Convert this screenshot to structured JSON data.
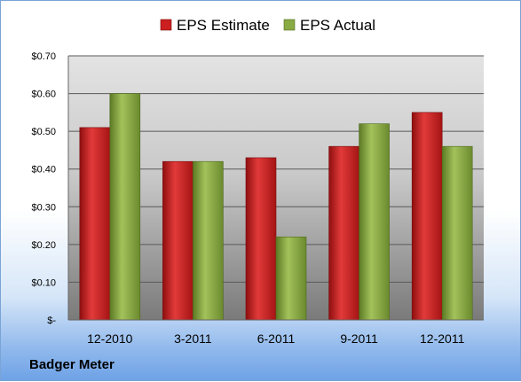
{
  "company": "Badger Meter",
  "chart_data": {
    "type": "bar",
    "categories": [
      "12-2010",
      "3-2011",
      "6-2011",
      "9-2011",
      "12-2011"
    ],
    "series": [
      {
        "name": "EPS Estimate",
        "values": [
          0.51,
          0.42,
          0.43,
          0.46,
          0.55
        ],
        "color": "#cc1f1f"
      },
      {
        "name": "EPS Actual",
        "values": [
          0.6,
          0.42,
          0.22,
          0.52,
          0.46
        ],
        "color": "#8aaa44"
      }
    ],
    "yticks": [
      {
        "value": 0,
        "label": "$-"
      },
      {
        "value": 0.1,
        "label": "$0.10"
      },
      {
        "value": 0.2,
        "label": "$0.20"
      },
      {
        "value": 0.3,
        "label": "$0.30"
      },
      {
        "value": 0.4,
        "label": "$0.40"
      },
      {
        "value": 0.5,
        "label": "$0.50"
      },
      {
        "value": 0.6,
        "label": "$0.60"
      },
      {
        "value": 0.7,
        "label": "$0.70"
      }
    ],
    "ylim": [
      0,
      0.7
    ],
    "grid": true,
    "legend": "top"
  }
}
